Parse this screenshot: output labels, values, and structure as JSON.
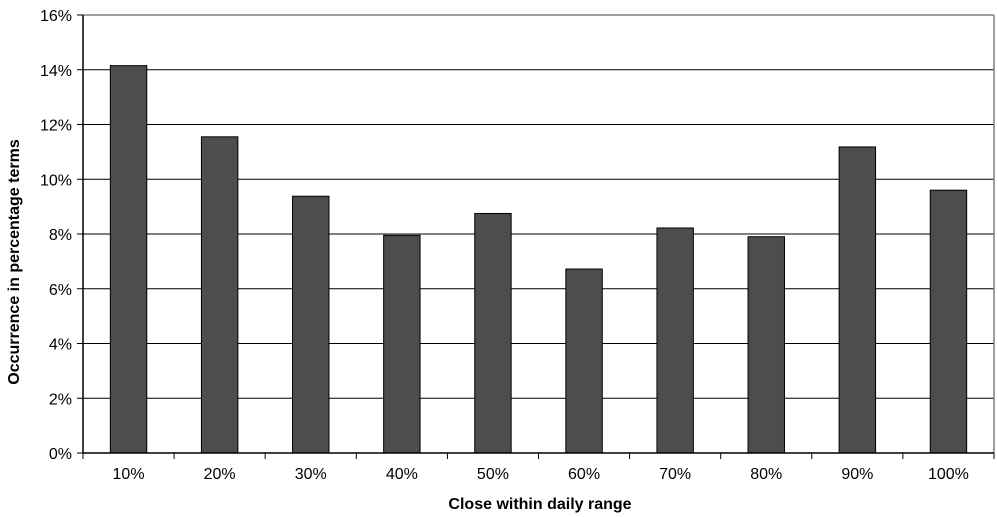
{
  "chart_data": {
    "type": "bar",
    "title": "",
    "xlabel": "Close within daily range",
    "ylabel": "Occurrence in percentage terms",
    "categories": [
      "10%",
      "20%",
      "30%",
      "40%",
      "50%",
      "60%",
      "70%",
      "80%",
      "90%",
      "100%"
    ],
    "values": [
      14.15,
      11.55,
      9.38,
      7.95,
      8.75,
      6.72,
      8.22,
      7.9,
      11.18,
      9.6
    ],
    "ylim": [
      0,
      16
    ],
    "yticks": [
      0,
      2,
      4,
      6,
      8,
      10,
      12,
      14,
      16
    ],
    "ytick_labels": [
      "0%",
      "2%",
      "4%",
      "6%",
      "8%",
      "10%",
      "12%",
      "14%",
      "16%"
    ],
    "grid": true,
    "legend": "none",
    "colors": {
      "bar_fill": "#4d4d4d",
      "bar_stroke": "#000000",
      "gridline": "#000000",
      "axis": "#000000",
      "plot_border": "#808080"
    }
  }
}
